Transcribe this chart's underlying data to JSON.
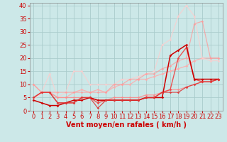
{
  "background_color": "#cce8e8",
  "grid_color": "#aacccc",
  "xlabel": "Vent moyen/en rafales ( km/h )",
  "ylabel_ticks": [
    0,
    5,
    10,
    15,
    20,
    25,
    30,
    35,
    40
  ],
  "xlim": [
    -0.5,
    23.5
  ],
  "ylim": [
    0,
    41
  ],
  "xticks": [
    0,
    1,
    2,
    3,
    4,
    5,
    6,
    7,
    8,
    9,
    10,
    11,
    12,
    13,
    14,
    15,
    16,
    17,
    18,
    19,
    20,
    21,
    22,
    23
  ],
  "series": [
    {
      "x": [
        0,
        1,
        2,
        3,
        4,
        5,
        6,
        7,
        8,
        9,
        10,
        11,
        12,
        13,
        14,
        15,
        16,
        17,
        18,
        19,
        20,
        21,
        22,
        23
      ],
      "y": [
        10,
        7,
        7,
        5,
        5,
        7,
        8,
        7,
        8,
        7,
        9,
        10,
        10,
        12,
        12,
        13,
        14,
        15,
        16,
        17,
        19,
        20,
        20,
        20
      ],
      "color": "#ffaaaa",
      "alpha": 0.85,
      "lw": 0.9
    },
    {
      "x": [
        0,
        1,
        2,
        3,
        4,
        5,
        6,
        7,
        8,
        9,
        10,
        11,
        12,
        13,
        14,
        15,
        16,
        17,
        18,
        19,
        20,
        21,
        22,
        23
      ],
      "y": [
        4,
        7,
        14,
        5,
        7,
        15,
        15,
        10,
        10,
        10,
        10,
        12,
        12,
        13,
        14,
        15,
        25,
        27,
        36,
        40,
        36,
        20,
        19,
        19
      ],
      "color": "#ffcccc",
      "alpha": 0.75,
      "lw": 0.9
    },
    {
      "x": [
        0,
        1,
        2,
        3,
        4,
        5,
        6,
        7,
        8,
        9,
        10,
        11,
        12,
        13,
        14,
        15,
        16,
        17,
        18,
        19,
        20,
        21,
        22,
        23
      ],
      "y": [
        10,
        7,
        7,
        7,
        7,
        7,
        7,
        7,
        7,
        7,
        10,
        10,
        12,
        12,
        14,
        14,
        16,
        17,
        19,
        20,
        33,
        34,
        20,
        20
      ],
      "color": "#ff9999",
      "alpha": 0.75,
      "lw": 0.9
    },
    {
      "x": [
        0,
        1,
        2,
        3,
        4,
        5,
        6,
        7,
        8,
        9,
        10,
        11,
        12,
        13,
        14,
        15,
        16,
        17,
        18,
        19,
        20,
        21,
        22,
        23
      ],
      "y": [
        5,
        7,
        7,
        5,
        5,
        5,
        5,
        5,
        4,
        4,
        5,
        5,
        5,
        5,
        6,
        6,
        7,
        8,
        8,
        9,
        10,
        11,
        11,
        12
      ],
      "color": "#ff8888",
      "alpha": 0.8,
      "lw": 0.9
    },
    {
      "x": [
        0,
        1,
        2,
        3,
        4,
        5,
        6,
        7,
        8,
        9,
        10,
        11,
        12,
        13,
        14,
        15,
        16,
        17,
        18,
        19,
        20,
        21,
        22,
        23
      ],
      "y": [
        5,
        7,
        7,
        3,
        3,
        3,
        5,
        5,
        3,
        4,
        4,
        4,
        4,
        4,
        5,
        5,
        7,
        8,
        20,
        24,
        12,
        11,
        11,
        12
      ],
      "color": "#ee4444",
      "alpha": 0.9,
      "lw": 1.0
    },
    {
      "x": [
        0,
        1,
        2,
        3,
        4,
        5,
        6,
        7,
        8,
        9,
        10,
        11,
        12,
        13,
        14,
        15,
        16,
        17,
        18,
        19,
        20,
        21,
        22,
        23
      ],
      "y": [
        4,
        3,
        2,
        2,
        3,
        4,
        4,
        5,
        4,
        4,
        4,
        4,
        4,
        4,
        5,
        5,
        5,
        21,
        23,
        25,
        12,
        12,
        12,
        12
      ],
      "color": "#cc0000",
      "alpha": 1.0,
      "lw": 1.1
    },
    {
      "x": [
        0,
        1,
        2,
        3,
        4,
        5,
        6,
        7,
        8,
        9,
        10,
        11,
        12,
        13,
        14,
        15,
        16,
        17,
        18,
        19,
        20,
        21,
        22,
        23
      ],
      "y": [
        5,
        7,
        7,
        3,
        3,
        3,
        5,
        5,
        1,
        4,
        4,
        4,
        4,
        4,
        5,
        5,
        7,
        7,
        7,
        9,
        10,
        11,
        11,
        12
      ],
      "color": "#dd3333",
      "alpha": 0.85,
      "lw": 0.9
    }
  ],
  "arrow_color": "#cc0000",
  "xlabel_color": "#cc0000",
  "xlabel_fontsize": 7,
  "tick_fontsize": 6,
  "tick_color": "#cc0000"
}
